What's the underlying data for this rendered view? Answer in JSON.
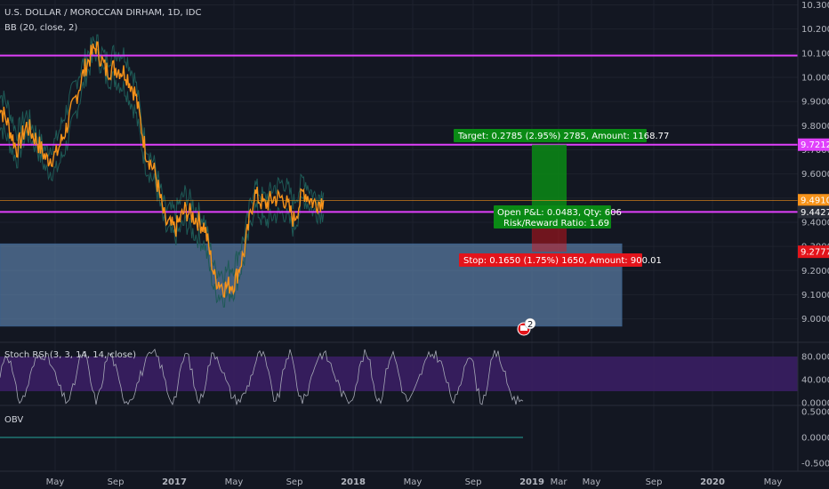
{
  "colors": {
    "background": "#131722",
    "price_line": "#f7931a",
    "bands": "#1e5a56",
    "hline": "#e040fb",
    "demand_zone": "#5b7fa6",
    "target": "#0a8a15",
    "stop": "#e3141b",
    "rsi_band": "#3c1f66"
  },
  "legend": {
    "title": "U.S. DOLLAR / MOROCCAN DIRHAM, 1D, IDC",
    "bb": "BB (20, close, 2)",
    "rsi": "Stoch RSI (3, 3, 14, 14, close)",
    "obv": "OBV"
  },
  "price_axis": {
    "ticks": [
      "10.3000",
      "10.2000",
      "10.1000",
      "10.0000",
      "9.9000",
      "9.8000",
      "9.7000",
      "9.6000",
      "9.5000",
      "9.4000",
      "9.3000",
      "9.2000",
      "9.1000",
      "9.0000"
    ],
    "badges": [
      {
        "label": "9.7212",
        "kind": "hline"
      },
      {
        "label": "9.4910",
        "kind": "last"
      },
      {
        "label": "9.4427",
        "kind": "hline2"
      },
      {
        "label": "9.2777",
        "kind": "stop"
      }
    ]
  },
  "rsi_axis": {
    "ticks": [
      "80.0000",
      "40.0000",
      "0.0000"
    ]
  },
  "obv_axis": {
    "ticks": [
      "0.5000",
      "0.0000",
      "-0.5000"
    ]
  },
  "time_axis": {
    "labels": [
      "May",
      "Sep",
      "2017",
      "May",
      "Sep",
      "2018",
      "May",
      "Sep",
      "2019",
      "Mar",
      "May",
      "Sep",
      "2020",
      "May"
    ]
  },
  "position": {
    "target_label": "Target: 0.2785 (2.95%) 2785, Amount: 1168.77",
    "open_pl_label": "Open P&L: 0.0483, Qty: 606",
    "rr_label": "Risk/Reward Ratio: 1.69",
    "stop_label": "Stop: 0.1650 (1.75%) 1650, Amount: 900.01"
  },
  "earnings_badge": "2",
  "chart_data": {
    "type": "line",
    "title": "U.S. DOLLAR / MOROCCAN DIRHAM, 1D, IDC",
    "indicators": [
      "BB (20, close, 2)",
      "Stoch RSI (3, 3, 14, 14, close)",
      "OBV"
    ],
    "x_labels": [
      "May",
      "Sep",
      "2017",
      "May",
      "Sep",
      "2018",
      "May",
      "Sep",
      "2019",
      "Mar",
      "May",
      "Sep",
      "2020",
      "May"
    ],
    "ylim": [
      8.95,
      10.3
    ],
    "price_series": {
      "name": "USD/MAD",
      "x": [
        "2016-03",
        "2016-04",
        "2016-05",
        "2016-06",
        "2016-07",
        "2016-08",
        "2016-09",
        "2016-10",
        "2016-11",
        "2016-12",
        "2017-01",
        "2017-02",
        "2017-03",
        "2017-04",
        "2017-05",
        "2017-06",
        "2017-07",
        "2017-08",
        "2017-09",
        "2017-10",
        "2017-11",
        "2017-12",
        "2018-01",
        "2018-02",
        "2018-03",
        "2018-04",
        "2018-05",
        "2018-06",
        "2018-07",
        "2018-08",
        "2018-09",
        "2018-10",
        "2018-11",
        "2018-12"
      ],
      "y": [
        9.9,
        9.82,
        9.7,
        9.8,
        9.74,
        9.66,
        9.68,
        9.79,
        9.92,
        10.05,
        10.13,
        10.03,
        10.04,
        10.02,
        9.93,
        9.7,
        9.6,
        9.4,
        9.37,
        9.45,
        9.42,
        9.38,
        9.17,
        9.13,
        9.15,
        9.28,
        9.52,
        9.47,
        9.5,
        9.5,
        9.41,
        9.53,
        9.48,
        9.49
      ]
    },
    "horizontal_lines": [
      10.09,
      9.7212,
      9.4427
    ],
    "demand_zone": [
      8.97,
      9.31
    ],
    "position": {
      "entry": 9.4427,
      "target": 9.7212,
      "stop": 9.2777
    }
  }
}
